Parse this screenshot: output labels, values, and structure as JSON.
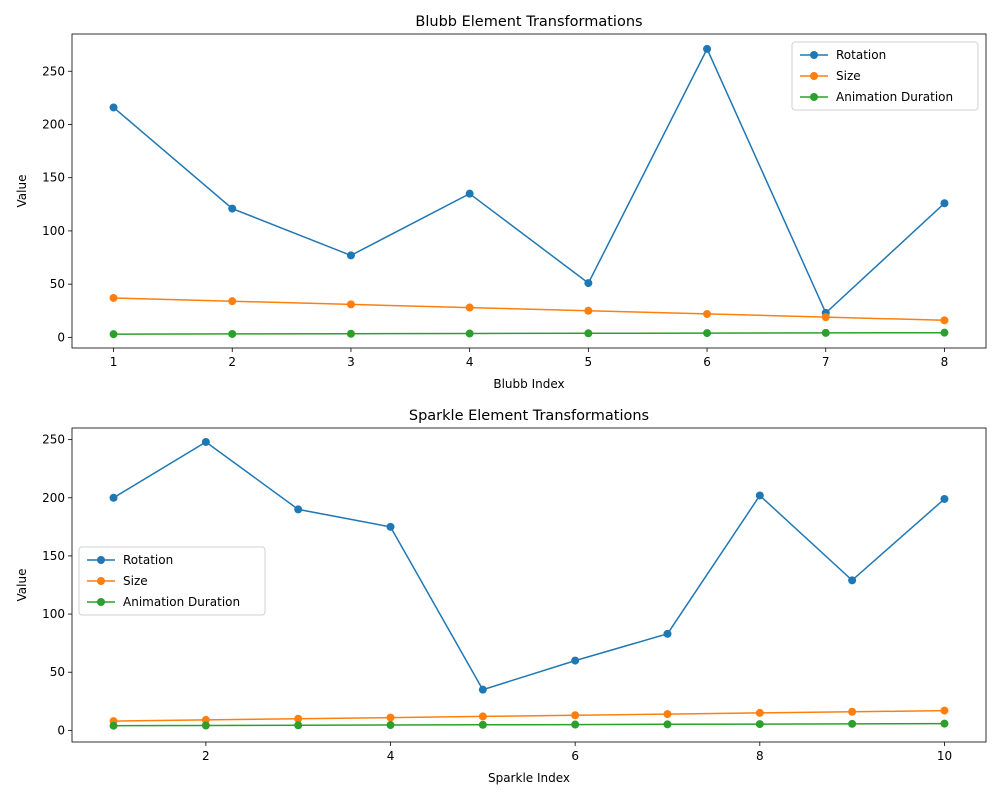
{
  "chart_data": [
    {
      "type": "line",
      "title": "Blubb Element Transformations",
      "xlabel": "Blubb Index",
      "ylabel": "Value",
      "x": [
        1,
        2,
        3,
        4,
        5,
        6,
        7,
        8
      ],
      "xlim": [
        0.65,
        8.35
      ],
      "ylim": [
        -10,
        285
      ],
      "xticks": [
        1,
        2,
        3,
        4,
        5,
        6,
        7,
        8
      ],
      "yticks": [
        0,
        50,
        100,
        150,
        200,
        250
      ],
      "legend_position": "upper-right",
      "grid": false,
      "series": [
        {
          "name": "Rotation",
          "color": "#1f77b4",
          "values": [
            216,
            121,
            77,
            135,
            51,
            271,
            23,
            126
          ]
        },
        {
          "name": "Size",
          "color": "#ff7f0e",
          "values": [
            37,
            34,
            31,
            28,
            25,
            22,
            19,
            16
          ]
        },
        {
          "name": "Animation Duration",
          "color": "#2ca02c",
          "values": [
            3.0,
            3.2,
            3.4,
            3.6,
            3.8,
            4.0,
            4.2,
            4.4
          ]
        }
      ]
    },
    {
      "type": "line",
      "title": "Sparkle Element Transformations",
      "xlabel": "Sparkle Index",
      "ylabel": "Value",
      "x": [
        1,
        2,
        3,
        4,
        5,
        6,
        7,
        8,
        9,
        10
      ],
      "xlim": [
        0.55,
        10.45
      ],
      "ylim": [
        -10,
        260
      ],
      "xticks": [
        2,
        4,
        6,
        8,
        10
      ],
      "yticks": [
        0,
        50,
        100,
        150,
        200,
        250
      ],
      "legend_position": "center-left",
      "grid": false,
      "series": [
        {
          "name": "Rotation",
          "color": "#1f77b4",
          "values": [
            200,
            248,
            190,
            175,
            35,
            60,
            83,
            202,
            129,
            199
          ]
        },
        {
          "name": "Size",
          "color": "#ff7f0e",
          "values": [
            8,
            9,
            10,
            11,
            12,
            13,
            14,
            15,
            16,
            17
          ]
        },
        {
          "name": "Animation Duration",
          "color": "#2ca02c",
          "values": [
            4.0,
            4.2,
            4.4,
            4.6,
            4.8,
            5.0,
            5.2,
            5.4,
            5.6,
            5.8
          ]
        }
      ]
    }
  ]
}
